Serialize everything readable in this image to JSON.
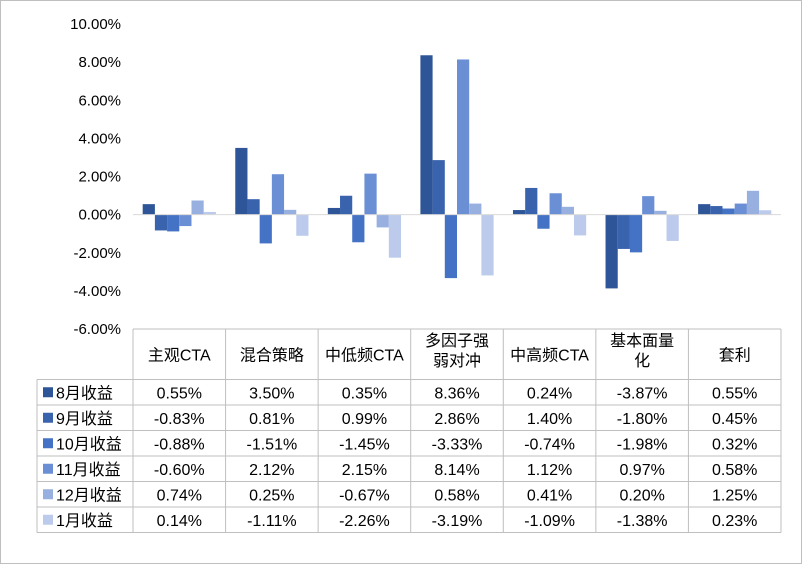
{
  "chart_data": {
    "type": "bar",
    "categories": [
      "主观CTA",
      "混合策略",
      "中低频CTA",
      "多因子强弱对冲",
      "中高频CTA",
      "基本面量化",
      "套利"
    ],
    "category_display": [
      [
        "主观CTA"
      ],
      [
        "混合策略"
      ],
      [
        "中低频CTA"
      ],
      [
        "多因子强",
        "弱对冲"
      ],
      [
        "中高频CTA"
      ],
      [
        "基本面量",
        "化"
      ],
      [
        "套利"
      ]
    ],
    "series": [
      {
        "name": "8月收益",
        "color": "#2e5597",
        "values": [
          0.55,
          3.5,
          0.35,
          8.36,
          0.24,
          -3.87,
          0.55
        ],
        "labels": [
          "0.55%",
          "3.50%",
          "0.35%",
          "8.36%",
          "0.24%",
          "-3.87%",
          "0.55%"
        ]
      },
      {
        "name": "9月收益",
        "color": "#3a63ad",
        "values": [
          -0.83,
          0.81,
          0.99,
          2.86,
          1.4,
          -1.8,
          0.45
        ],
        "labels": [
          "-0.83%",
          "0.81%",
          "0.99%",
          "2.86%",
          "1.40%",
          "-1.80%",
          "0.45%"
        ]
      },
      {
        "name": "10月收益",
        "color": "#4472c4",
        "values": [
          -0.88,
          -1.51,
          -1.45,
          -3.33,
          -0.74,
          -1.98,
          0.32
        ],
        "labels": [
          "-0.88%",
          "-1.51%",
          "-1.45%",
          "-3.33%",
          "-0.74%",
          "-1.98%",
          "0.32%"
        ]
      },
      {
        "name": "11月收益",
        "color": "#6b8fd4",
        "values": [
          -0.6,
          2.12,
          2.15,
          8.14,
          1.12,
          0.97,
          0.58
        ],
        "labels": [
          "-0.60%",
          "2.12%",
          "2.15%",
          "8.14%",
          "1.12%",
          "0.97%",
          "0.58%"
        ]
      },
      {
        "name": "12月收益",
        "color": "#97b0e0",
        "values": [
          0.74,
          0.25,
          -0.67,
          0.58,
          0.41,
          0.2,
          1.25
        ],
        "labels": [
          "0.74%",
          "0.25%",
          "-0.67%",
          "0.58%",
          "0.41%",
          "0.20%",
          "1.25%"
        ]
      },
      {
        "name": "1月收益",
        "color": "#bccbeb",
        "values": [
          0.14,
          -1.11,
          -2.26,
          -3.19,
          -1.09,
          -1.38,
          0.23
        ],
        "labels": [
          "0.14%",
          "-1.11%",
          "-2.26%",
          "-3.19%",
          "-1.09%",
          "-1.38%",
          "0.23%"
        ]
      }
    ],
    "ylim": [
      -6,
      10
    ],
    "y_ticks": [
      {
        "value": 10,
        "label": "10.00%"
      },
      {
        "value": 8,
        "label": "8.00%"
      },
      {
        "value": 6,
        "label": "6.00%"
      },
      {
        "value": 4,
        "label": "4.00%"
      },
      {
        "value": 2,
        "label": "2.00%"
      },
      {
        "value": 0,
        "label": "0.00%"
      },
      {
        "value": -2,
        "label": "-2.00%"
      },
      {
        "value": -4,
        "label": "-4.00%"
      },
      {
        "value": -6,
        "label": "-6.00%"
      }
    ],
    "grid": false,
    "legend": "data-table-rows"
  }
}
